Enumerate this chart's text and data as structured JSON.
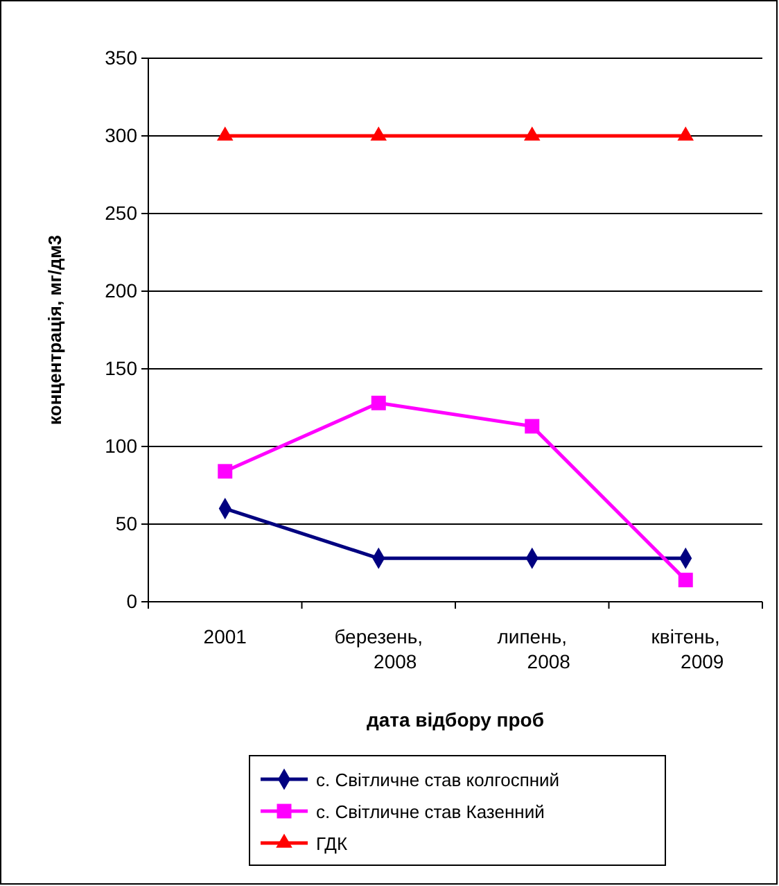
{
  "chart_data": {
    "type": "line",
    "xlabel": "дата відбору проб",
    "ylabel": "концентрація, мг/дм3",
    "categories": [
      "2001",
      "березень, 2008",
      "липень, 2008",
      "квітень, 2009"
    ],
    "series": [
      {
        "name": "с. Світличне став колгоспний",
        "color": "#000080",
        "marker": "diamond",
        "values": [
          60,
          28,
          28,
          28
        ]
      },
      {
        "name": "с. Світличне став Казенний",
        "color": "#ff00ff",
        "marker": "square",
        "values": [
          84,
          128,
          113,
          14
        ]
      },
      {
        "name": "ГДК",
        "color": "#ff0000",
        "marker": "triangle",
        "values": [
          300,
          300,
          300,
          300
        ]
      }
    ],
    "ylim": [
      0,
      350
    ],
    "yticks": [
      0,
      50,
      100,
      150,
      200,
      250,
      300,
      350
    ],
    "grid": "y",
    "legend": "bottom",
    "line_style": "solid"
  }
}
